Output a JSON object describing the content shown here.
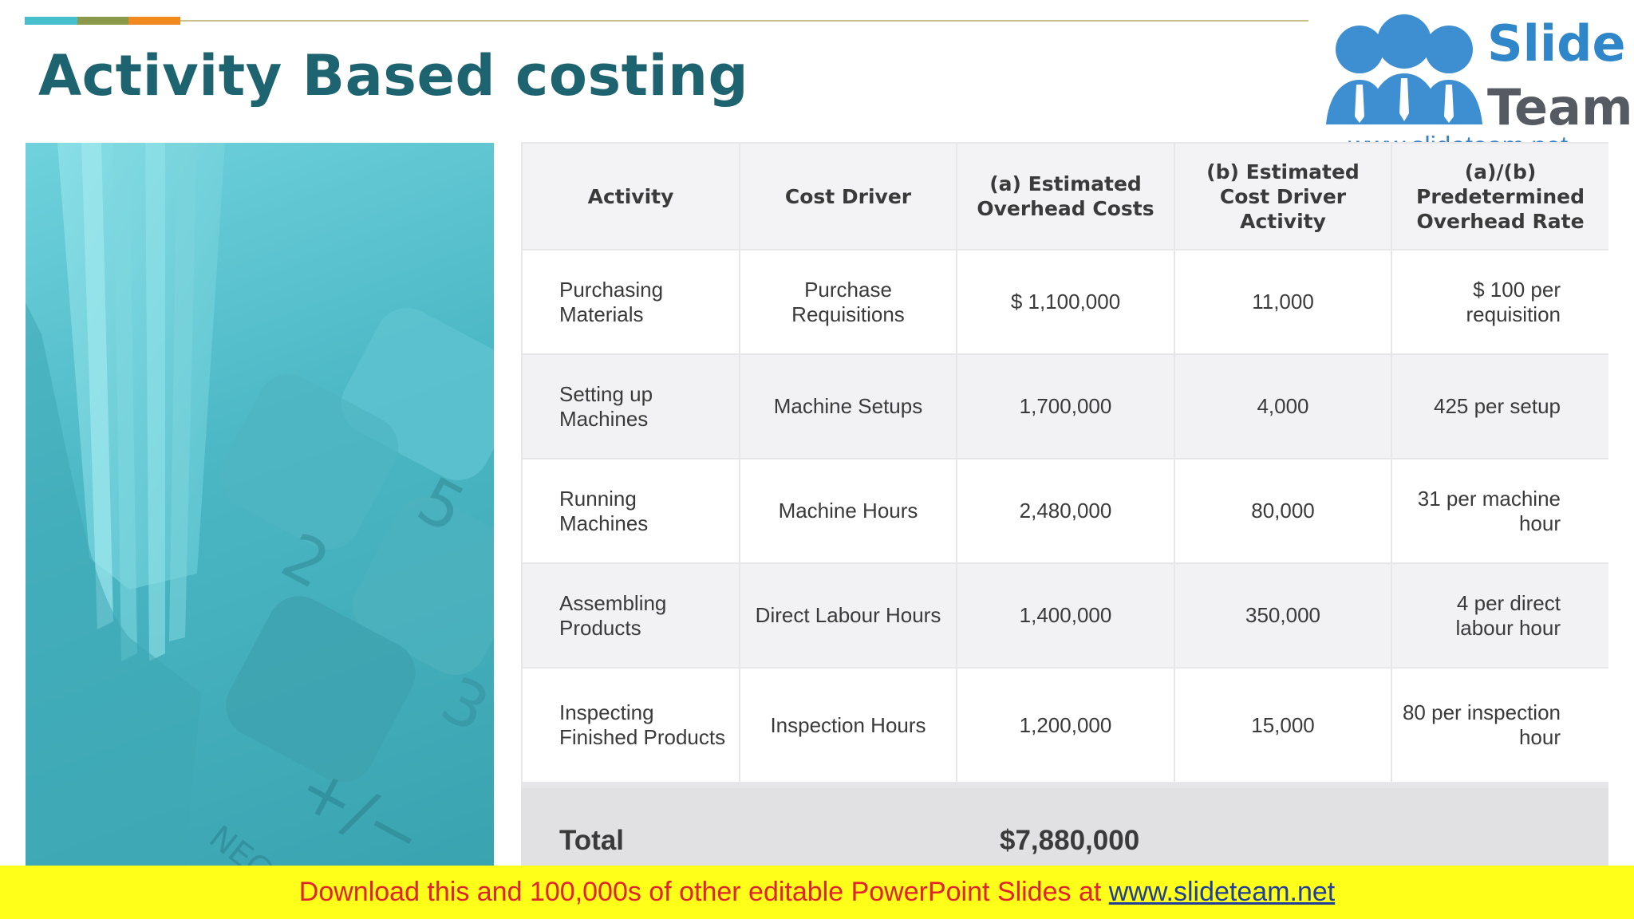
{
  "title": "Activity Based costing",
  "colors": {
    "accent_segments": [
      "#46bfcc",
      "#8a9a4a",
      "#f08a1e"
    ],
    "title": "#1e6470",
    "banner_bg": "#ffff1a",
    "banner_text": "#e0242b",
    "banner_link": "#1f3f9a"
  },
  "logo": {
    "icon": "people-group-icon",
    "word1": "Slide",
    "word2": "Team",
    "url": "www.slideteam.net"
  },
  "photo": {
    "icon": "calculator-keypad-icon"
  },
  "table": {
    "headers": [
      "Activity",
      "Cost Driver",
      "(a) Estimated Overhead Costs",
      "(b) Estimated Cost Driver Activity",
      "(a)/(b) Predetermined Overhead Rate"
    ],
    "rows": [
      {
        "activity": "Purchasing Materials",
        "driver": "Purchase Requisitions",
        "cost": "$ 1,100,000",
        "driver_activity": "11,000",
        "rate": "$ 100 per requisition"
      },
      {
        "activity": "Setting up Machines",
        "driver": "Machine Setups",
        "cost": "1,700,000",
        "driver_activity": "4,000",
        "rate": "425 per setup"
      },
      {
        "activity": "Running Machines",
        "driver": "Machine Hours",
        "cost": "2,480,000",
        "driver_activity": "80,000",
        "rate": "31 per machine hour"
      },
      {
        "activity": "Assembling Products",
        "driver": "Direct Labour Hours",
        "cost": "1,400,000",
        "driver_activity": "350,000",
        "rate": "4 per direct labour hour"
      },
      {
        "activity": "Inspecting Finished Products",
        "driver": "Inspection Hours",
        "cost": "1,200,000",
        "driver_activity": "15,000",
        "rate": "80 per inspection hour"
      }
    ],
    "total": {
      "label": "Total",
      "value": "$7,880,000"
    }
  },
  "banner": {
    "text": "Download this and 100,000s of other editable PowerPoint Slides at ",
    "link": "www.slideteam.net"
  }
}
